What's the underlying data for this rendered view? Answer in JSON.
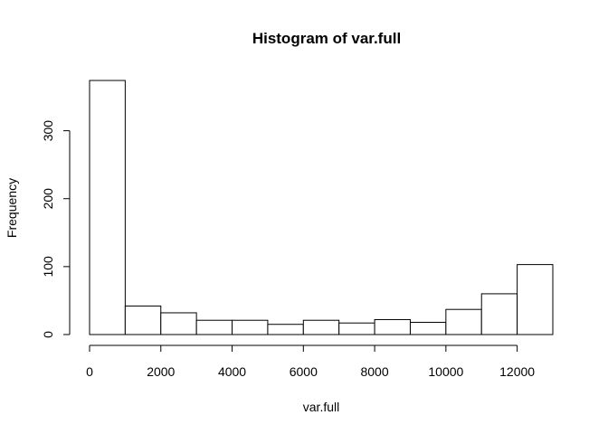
{
  "chart_data": {
    "type": "bar",
    "title": "Histogram of var.full",
    "xlabel": "var.full",
    "ylabel": "Frequency",
    "bins": [
      {
        "from": 0,
        "to": 1000,
        "count": 374
      },
      {
        "from": 1000,
        "to": 2000,
        "count": 42
      },
      {
        "from": 2000,
        "to": 3000,
        "count": 32
      },
      {
        "from": 3000,
        "to": 4000,
        "count": 21
      },
      {
        "from": 4000,
        "to": 5000,
        "count": 21
      },
      {
        "from": 5000,
        "to": 6000,
        "count": 15
      },
      {
        "from": 6000,
        "to": 7000,
        "count": 21
      },
      {
        "from": 7000,
        "to": 8000,
        "count": 17
      },
      {
        "from": 8000,
        "to": 9000,
        "count": 22
      },
      {
        "from": 9000,
        "to": 10000,
        "count": 18
      },
      {
        "from": 10000,
        "to": 11000,
        "count": 37
      },
      {
        "from": 11000,
        "to": 12000,
        "count": 60
      },
      {
        "from": 12000,
        "to": 13000,
        "count": 103
      }
    ],
    "xlim": [
      0,
      13000
    ],
    "ylim": [
      0,
      374
    ],
    "xticks": [
      0,
      2000,
      4000,
      6000,
      8000,
      10000,
      12000
    ],
    "yticks": [
      0,
      100,
      200,
      300
    ],
    "grid": false,
    "bar_fill": "#ffffff",
    "bar_stroke": "#000000"
  }
}
